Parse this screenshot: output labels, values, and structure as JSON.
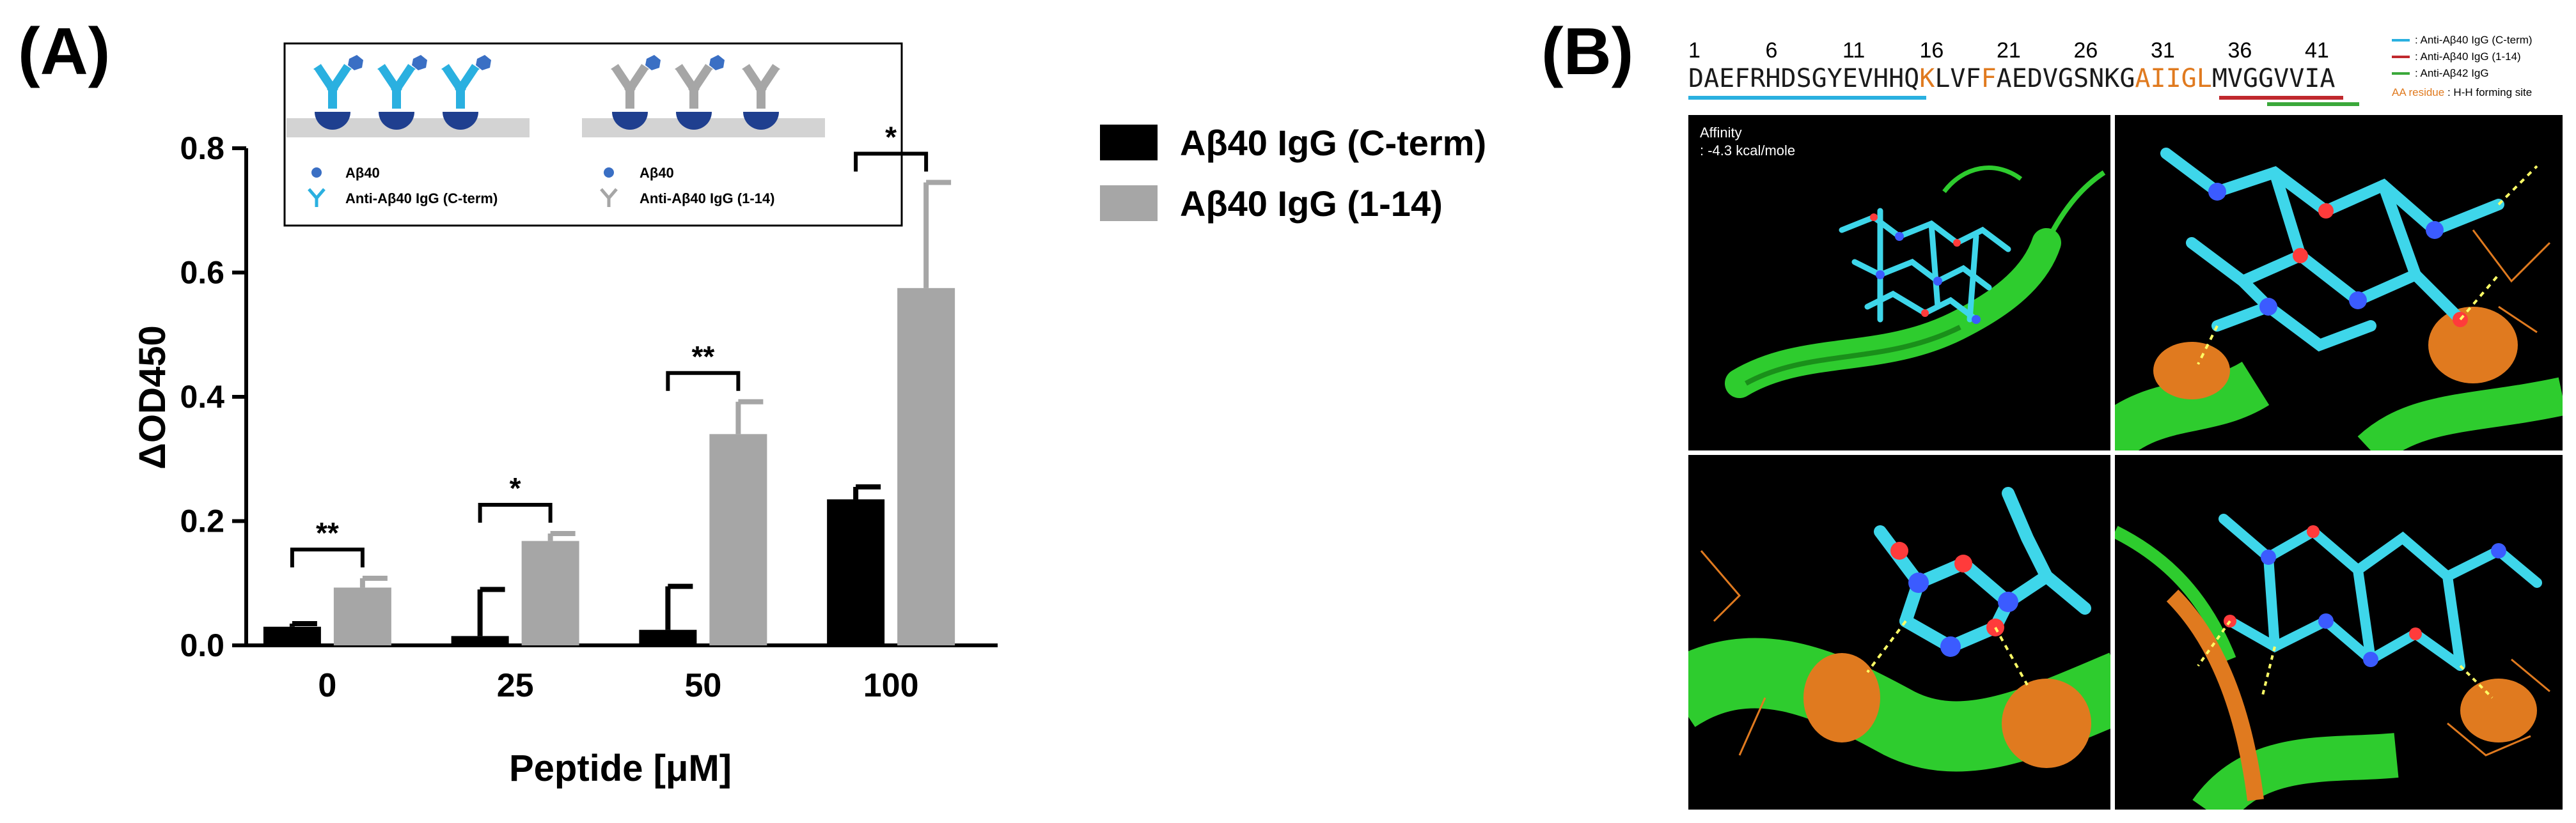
{
  "panel_a": {
    "label": "(A)",
    "inset": {
      "left_legend": [
        {
          "icon": "abeta40-dot-icon",
          "label": "Aβ40"
        },
        {
          "icon": "antibody-cterm-icon",
          "label": "Anti-Aβ40 IgG (C-term)"
        }
      ],
      "right_legend": [
        {
          "icon": "abeta40-dot-icon",
          "label": "Aβ40"
        },
        {
          "icon": "antibody-1-14-icon",
          "label": "Anti-Aβ40 IgG (1-14)"
        }
      ]
    }
  },
  "chart_data": {
    "type": "bar",
    "title": "",
    "xlabel": "Peptide [μM]",
    "ylabel": "ΔOD450",
    "categories": [
      "0",
      "25",
      "50",
      "100"
    ],
    "ylim": [
      0,
      0.8
    ],
    "yticks": [
      "0.0",
      "0.2",
      "0.4",
      "0.6",
      "0.8"
    ],
    "series": [
      {
        "name": "Aβ40 IgG (C-term)",
        "color": "#000000",
        "values": [
          0.03,
          0.015,
          0.025,
          0.235
        ],
        "errors": [
          0.005,
          0.075,
          0.07,
          0.02
        ]
      },
      {
        "name": "Aβ40 IgG (1-14)",
        "color": "#a6a6a6",
        "values": [
          0.093,
          0.168,
          0.34,
          0.575
        ],
        "errors": [
          0.015,
          0.012,
          0.052,
          0.17
        ]
      }
    ],
    "significance": [
      "**",
      "*",
      "**",
      "*"
    ],
    "legend_position": "right"
  },
  "panel_b": {
    "label": "(B)",
    "residue_numbers": [
      "1",
      "6",
      "11",
      "16",
      "21",
      "26",
      "31",
      "36",
      "41"
    ],
    "sequence": [
      {
        "text": "DAEFRHDSGYEVHHQ",
        "color": "#1a1a1a"
      },
      {
        "text": "K",
        "color": "#e07a1f"
      },
      {
        "text": "LVF",
        "color": "#1a1a1a"
      },
      {
        "text": "F",
        "color": "#e07a1f"
      },
      {
        "text": "AEDVGSNKG",
        "color": "#1a1a1a"
      },
      {
        "text": "AIIGL",
        "color": "#e07a1f"
      },
      {
        "text": "MVGGVVIA",
        "color": "#1a1a1a"
      }
    ],
    "legend": [
      {
        "color": "#2ab0e0",
        "label": ": Anti-Aβ40 IgG (C-term)"
      },
      {
        "color": "#c0282d",
        "label": ": Anti-Aβ40 IgG (1-14)"
      },
      {
        "color": "#3aa83a",
        "label": ": Anti-Aβ42 IgG"
      }
    ],
    "aa_note_key": "AA residue",
    "aa_note_text": ": H-H forming site",
    "affinity_title": "Affinity",
    "affinity_value": ": -4.3 kcal/mole"
  },
  "colors": {
    "accent_cyan": "#2ab0e0",
    "helix_green": "#2ecc2e",
    "contact_orange": "#e07a1f",
    "bar_gray": "#a6a6a6"
  }
}
